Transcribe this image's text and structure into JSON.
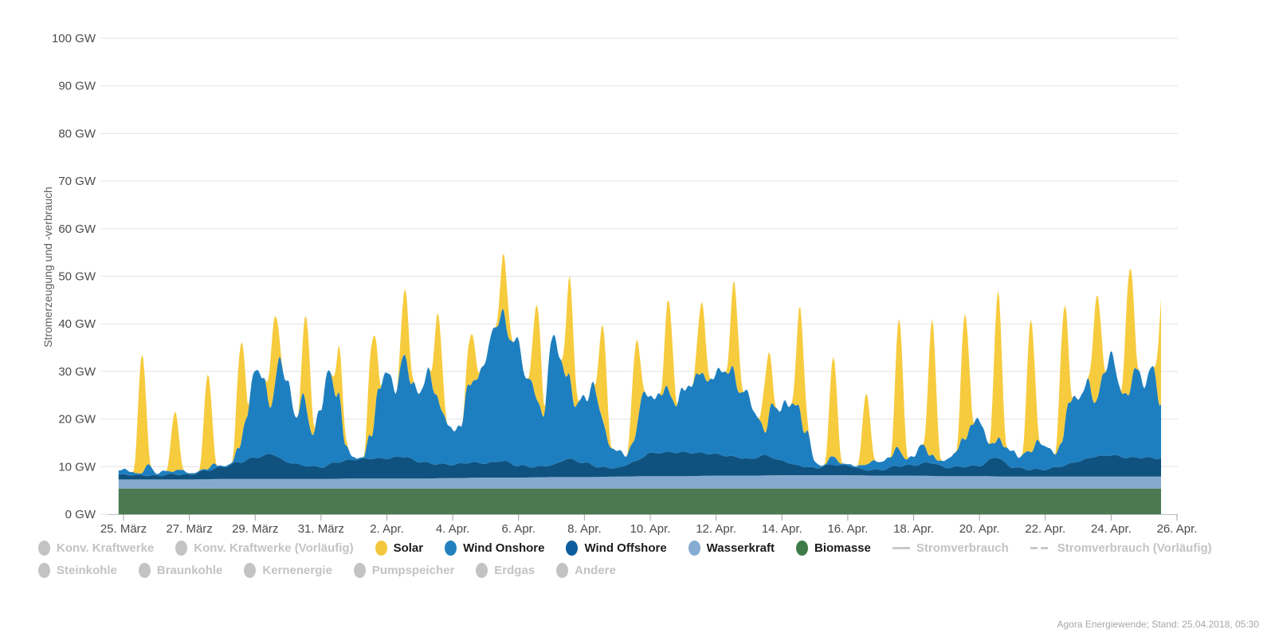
{
  "chart_data": {
    "type": "area",
    "title": "",
    "ylabel": "Stromerzeugung und -verbrauch",
    "ylim": [
      0,
      100
    ],
    "grid": "horizontal-only",
    "unit": "GW",
    "y_tick_labels": [
      "0 GW",
      "10 GW",
      "20 GW",
      "30 GW",
      "40 GW",
      "50 GW",
      "60 GW",
      "70 GW",
      "80 GW",
      "90 GW",
      "100 GW"
    ],
    "x_tick_labels": [
      "25. März",
      "27. März",
      "29. März",
      "31. März",
      "2. Apr.",
      "4. Apr.",
      "6. Apr.",
      "8. Apr.",
      "10. Apr.",
      "12. Apr.",
      "14. Apr.",
      "16. Apr.",
      "18. Apr.",
      "20. Apr.",
      "22. Apr.",
      "24. Apr.",
      "26. Apr."
    ],
    "days": [
      "25.03",
      "26.03",
      "27.03",
      "28.03",
      "29.03",
      "30.03",
      "31.03",
      "01.04",
      "02.04",
      "03.04",
      "04.04",
      "05.04",
      "06.04",
      "07.04",
      "08.04",
      "09.04",
      "10.04",
      "11.04",
      "12.04",
      "13.04",
      "14.04",
      "15.04",
      "16.04",
      "17.04",
      "18.04",
      "19.04",
      "20.04",
      "21.04",
      "22.04",
      "23.04",
      "24.04",
      "25.04"
    ],
    "series_order_bottom_to_top": [
      "Biomasse",
      "Wasserkraft",
      "Wind Offshore",
      "Wind Onshore",
      "Solar"
    ],
    "biomasse_gw_constant": 5.4,
    "wasserkraft_gw_daily": [
      1.9,
      1.9,
      1.9,
      2,
      2,
      2,
      2,
      2.1,
      2.1,
      2.1,
      2.2,
      2.3,
      2.3,
      2.4,
      2.4,
      2.5,
      2.6,
      2.6,
      2.7,
      2.7,
      2.8,
      2.8,
      2.8,
      2.7,
      2.7,
      2.6,
      2.6,
      2.5,
      2.5,
      2.5,
      2.5,
      2.5
    ],
    "wind_offshore_gw_12h": [
      1,
      0.9,
      0.8,
      1.1,
      1,
      1.8,
      2.5,
      3.5,
      4.5,
      5.2,
      3.5,
      2.8,
      2.5,
      3.5,
      4,
      4.2,
      4.2,
      4.6,
      3.5,
      3,
      2.8,
      3.2,
      3,
      3.5,
      2.5,
      2.2,
      2.5,
      3.8,
      3,
      2,
      1.8,
      3,
      4.8,
      5,
      5,
      4.8,
      4.5,
      4,
      3.5,
      4.2,
      3,
      2,
      1.5,
      2.2,
      2,
      1.2,
      1.2,
      2,
      2.2,
      2.8,
      1.8,
      2,
      2.2,
      4,
      2,
      1.5,
      1.5,
      2.2,
      3.2,
      4.2,
      4.5,
      4,
      4,
      3.8,
      3.8
    ],
    "stack_top_without_solar_gw_6h": [
      9.4,
      8.8,
      8.6,
      10.3,
      8.6,
      9.2,
      8.8,
      9.6,
      8.4,
      8.8,
      9.4,
      10.4,
      9.8,
      10.5,
      13.5,
      22,
      30,
      28.5,
      23.5,
      32,
      28,
      20,
      24.5,
      17,
      22,
      31,
      25,
      14.5,
      12,
      10.5,
      17,
      26,
      29.5,
      27,
      32.5,
      28,
      26,
      29,
      26,
      20,
      17,
      20,
      26.5,
      29,
      33,
      38,
      43.5,
      36,
      36,
      29,
      25,
      21,
      37,
      33,
      29.5,
      22,
      25,
      27,
      21,
      15,
      13,
      12.5,
      15.5,
      24,
      26,
      24,
      26.5,
      24,
      25,
      28,
      30,
      27,
      31,
      29,
      30.5,
      26,
      24,
      21,
      17.5,
      23,
      23,
      22.5,
      23,
      17,
      11,
      10,
      12,
      11,
      10.5,
      10,
      10.5,
      11,
      11,
      12,
      13.5,
      12,
      12,
      14.5,
      13,
      11,
      11.5,
      13,
      15,
      19.5,
      19.5,
      15,
      16,
      14,
      13.5,
      12,
      13,
      15.5,
      14,
      13,
      15,
      24,
      25,
      27,
      24,
      29,
      33,
      28,
      24,
      31,
      28,
      30,
      24,
      26.5,
      26.5
    ],
    "solar_noon_peak_gw_daily": [
      25,
      12.5,
      20,
      21,
      15,
      19,
      10,
      20,
      14,
      18,
      10.5,
      12,
      20,
      21,
      20,
      19,
      19,
      15,
      19,
      14,
      22,
      21,
      15,
      27.5,
      28.5,
      26.5,
      31,
      28,
      26,
      22,
      26,
      24
    ],
    "time_span_days": {
      "start": -0.15,
      "end": 31.55
    },
    "colors": {
      "solar": "#F7CB3E",
      "wind_onshore": "#1E7FC0",
      "wind_offshore": "#0F527F",
      "wasserkraft": "#84A9CE",
      "biomasse": "#4B7A50",
      "grid": "#e3e3e3",
      "axis": "#b6c2ca",
      "tick": "#98a4ad",
      "axis_text": "#4b4b4b",
      "inactive_legend": "#c3c3c3"
    }
  },
  "legend": {
    "row1": [
      {
        "label": "Konv. Kraftwerke",
        "marker": "dot",
        "color": "#c3c3c3",
        "active": false
      },
      {
        "label": "Konv. Kraftwerke (Vorläufig)",
        "marker": "dot",
        "color": "#c3c3c3",
        "active": false
      },
      {
        "label": "Solar",
        "marker": "dot",
        "color": "#F2C73D",
        "active": true
      },
      {
        "label": "Wind Onshore",
        "marker": "dot",
        "color": "#2280BF",
        "active": true
      },
      {
        "label": "Wind Offshore",
        "marker": "dot",
        "color": "#0B5D9C",
        "active": true
      },
      {
        "label": "Wasserkraft",
        "marker": "dot",
        "color": "#87ABD2",
        "active": true
      },
      {
        "label": "Biomasse",
        "marker": "dot",
        "color": "#3F7A49",
        "active": true
      },
      {
        "label": "Stromverbrauch",
        "marker": "line",
        "color": "#c9c9c9",
        "active": false
      },
      {
        "label": "Stromverbrauch (Vorläufig)",
        "marker": "dashes",
        "color": "#c9c9c9",
        "active": false
      }
    ],
    "row2": [
      {
        "label": "Steinkohle",
        "marker": "dot",
        "color": "#c3c3c3",
        "active": false
      },
      {
        "label": "Braunkohle",
        "marker": "dot",
        "color": "#c3c3c3",
        "active": false
      },
      {
        "label": "Kernenergie",
        "marker": "dot",
        "color": "#c3c3c3",
        "active": false
      },
      {
        "label": "Pumpspeicher",
        "marker": "dot",
        "color": "#c3c3c3",
        "active": false
      },
      {
        "label": "Erdgas",
        "marker": "dot",
        "color": "#c3c3c3",
        "active": false
      },
      {
        "label": "Andere",
        "marker": "dot",
        "color": "#c3c3c3",
        "active": false
      }
    ]
  },
  "footer": {
    "attribution": "Agora Energiewende; Stand: 25.04.2018, 05:30"
  }
}
